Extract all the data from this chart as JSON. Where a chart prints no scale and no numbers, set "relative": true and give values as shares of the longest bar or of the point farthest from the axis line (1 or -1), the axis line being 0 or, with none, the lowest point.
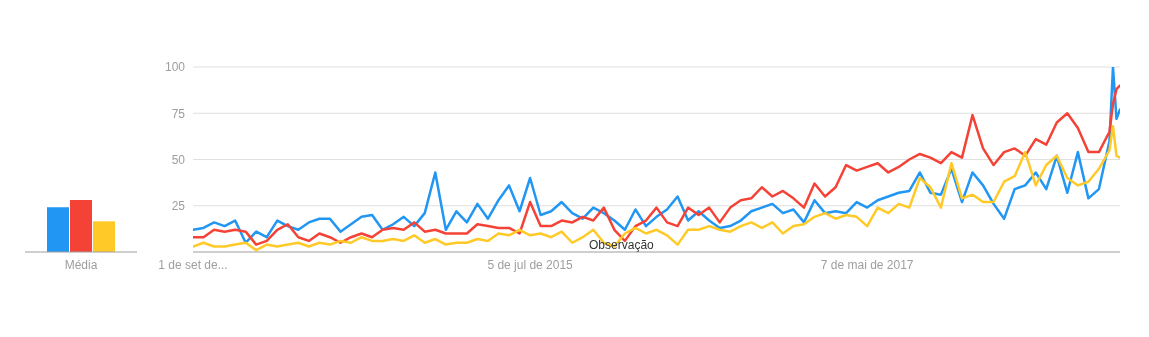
{
  "chart_data": [
    {
      "type": "bar",
      "categories": [
        "Média"
      ],
      "relative": true,
      "series": [
        {
          "color": "#2196f3",
          "values": [
            0.86
          ]
        },
        {
          "color": "#f44336",
          "values": [
            1
          ]
        },
        {
          "color": "#ffca28",
          "values": [
            0.59
          ]
        }
      ]
    },
    {
      "type": "line",
      "xlim": [
        "2013-09-01",
        "2018-09-23"
      ],
      "xticks": [
        {
          "value": "2013-09-01",
          "label": "1 de set de..."
        },
        {
          "value": "2015-07-05",
          "label": "5 de jul de 2015"
        },
        {
          "value": "2017-05-07",
          "label": "7 de mai de 2017"
        }
      ],
      "ylim": [
        0,
        100
      ],
      "yticks": [
        25,
        50,
        75,
        100
      ],
      "grid": "y",
      "legend": false,
      "x": [
        "2013-09-01",
        "2013-09-22",
        "2013-10-13",
        "2013-11-03",
        "2013-11-24",
        "2013-12-15",
        "2014-01-05",
        "2014-01-26",
        "2014-02-16",
        "2014-03-09",
        "2014-03-30",
        "2014-04-20",
        "2014-05-11",
        "2014-06-01",
        "2014-06-22",
        "2014-07-13",
        "2014-08-03",
        "2014-08-24",
        "2014-09-14",
        "2014-10-05",
        "2014-10-26",
        "2014-11-16",
        "2014-12-07",
        "2014-12-28",
        "2015-01-18",
        "2015-02-08",
        "2015-03-01",
        "2015-03-22",
        "2015-04-12",
        "2015-05-03",
        "2015-05-24",
        "2015-06-14",
        "2015-07-05",
        "2015-07-26",
        "2015-08-16",
        "2015-09-06",
        "2015-09-27",
        "2015-10-18",
        "2015-11-08",
        "2015-11-29",
        "2015-12-20",
        "2016-01-10",
        "2016-01-31",
        "2016-02-21",
        "2016-03-13",
        "2016-04-03",
        "2016-04-24",
        "2016-05-15",
        "2016-06-05",
        "2016-06-26",
        "2016-07-17",
        "2016-08-07",
        "2016-08-28",
        "2016-09-18",
        "2016-10-09",
        "2016-10-30",
        "2016-11-20",
        "2016-12-11",
        "2017-01-01",
        "2017-01-22",
        "2017-02-12",
        "2017-03-05",
        "2017-03-26",
        "2017-04-16",
        "2017-05-07",
        "2017-05-28",
        "2017-06-18",
        "2017-07-09",
        "2017-07-30",
        "2017-08-20",
        "2017-09-10",
        "2017-10-01",
        "2017-10-22",
        "2017-11-12",
        "2017-12-03",
        "2017-12-24",
        "2018-01-14",
        "2018-02-04",
        "2018-02-25",
        "2018-03-18",
        "2018-04-08",
        "2018-04-29",
        "2018-05-20",
        "2018-06-10",
        "2018-07-01",
        "2018-07-22",
        "2018-08-12",
        "2018-09-02",
        "2018-09-09",
        "2018-09-16",
        "2018-09-23"
      ],
      "series": [
        {
          "color": "#2196f3",
          "values": [
            12,
            13,
            16,
            14,
            17,
            5,
            11,
            8,
            17,
            14,
            12,
            16,
            18,
            18,
            11,
            15,
            19,
            20,
            12,
            15,
            19,
            14,
            21,
            43,
            12,
            22,
            16,
            26,
            18,
            28,
            36,
            22,
            40,
            20,
            22,
            27,
            21,
            18,
            24,
            21,
            17,
            12,
            23,
            14,
            19,
            23,
            30,
            17,
            22,
            17,
            13,
            14,
            17,
            22,
            24,
            26,
            21,
            23,
            16,
            28,
            21,
            22,
            21,
            27,
            24,
            28,
            30,
            32,
            33,
            43,
            32,
            31,
            45,
            27,
            43,
            36,
            26,
            18,
            34,
            36,
            43,
            34,
            52,
            32,
            54,
            29,
            34,
            60,
            100,
            72,
            77
          ]
        },
        {
          "color": "#f44336",
          "values": [
            8,
            8,
            12,
            11,
            12,
            11,
            4,
            6,
            12,
            15,
            8,
            6,
            10,
            8,
            5,
            8,
            10,
            8,
            12,
            13,
            12,
            16,
            11,
            12,
            10,
            10,
            10,
            15,
            14,
            13,
            13,
            10,
            27,
            14,
            14,
            17,
            16,
            19,
            17,
            24,
            12,
            6,
            14,
            17,
            24,
            16,
            14,
            24,
            20,
            24,
            16,
            24,
            28,
            29,
            35,
            30,
            33,
            29,
            24,
            37,
            30,
            35,
            47,
            44,
            46,
            48,
            43,
            46,
            50,
            53,
            51,
            48,
            54,
            51,
            74,
            56,
            47,
            54,
            56,
            52,
            61,
            58,
            70,
            75,
            67,
            54,
            54,
            65,
            80,
            88,
            90
          ]
        },
        {
          "color": "#ffca28",
          "values": [
            3,
            5,
            3,
            3,
            4,
            5,
            1,
            4,
            3,
            4,
            5,
            3,
            5,
            4,
            6,
            5,
            8,
            6,
            6,
            7,
            6,
            9,
            5,
            7,
            4,
            5,
            5,
            7,
            6,
            10,
            9,
            12,
            9,
            10,
            8,
            11,
            5,
            8,
            12,
            5,
            3,
            10,
            13,
            10,
            12,
            9,
            4,
            12,
            12,
            14,
            12,
            11,
            14,
            16,
            13,
            16,
            10,
            14,
            15,
            19,
            21,
            18,
            20,
            19,
            14,
            24,
            21,
            26,
            24,
            40,
            35,
            24,
            48,
            29,
            31,
            27,
            27,
            38,
            41,
            54,
            36,
            47,
            52,
            40,
            36,
            38,
            45,
            55,
            68,
            52,
            51
          ]
        }
      ],
      "annotations": [
        {
          "text": "Observação",
          "x": "2016-01-03",
          "y": 4
        }
      ]
    }
  ]
}
